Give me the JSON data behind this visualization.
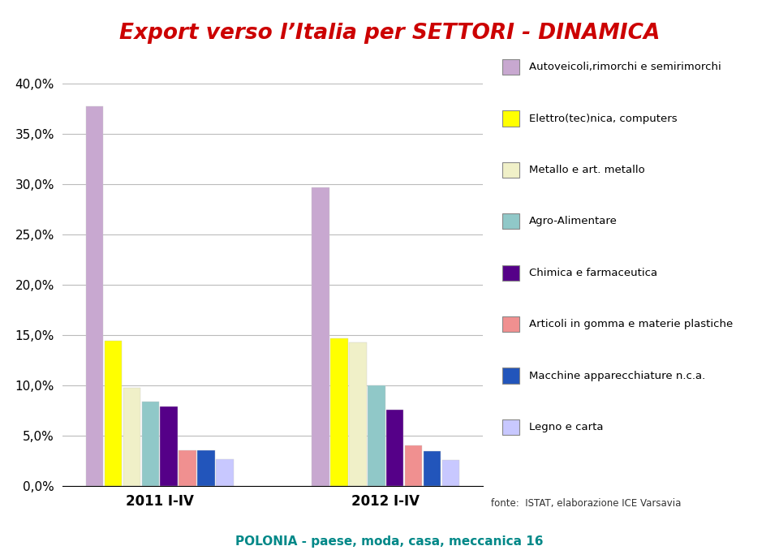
{
  "title": "Export verso l’Italia per SETTORI - DINAMICA",
  "title_color": "#cc0000",
  "categories": [
    "2011 I-IV",
    "2012 I-IV"
  ],
  "series": [
    {
      "label": "Autoveicoli,rimorchi e semirimorchi",
      "color": "#c8a8d0",
      "values": [
        0.378,
        0.297
      ]
    },
    {
      "label": "Elettro(tec)nica, computers",
      "color": "#ffff00",
      "values": [
        0.145,
        0.147
      ]
    },
    {
      "label": "Metallo e art. metallo",
      "color": "#f0f0c8",
      "values": [
        0.098,
        0.143
      ]
    },
    {
      "label": "Agro-Alimentare",
      "color": "#90c8c8",
      "values": [
        0.084,
        0.1
      ]
    },
    {
      "label": "Chimica e farmaceutica",
      "color": "#550088",
      "values": [
        0.079,
        0.076
      ]
    },
    {
      "label": "Articoli in gomma e materie plastiche",
      "color": "#f09090",
      "values": [
        0.036,
        0.041
      ]
    },
    {
      "label": "Macchine apparecchiature n.c.a.",
      "color": "#2255bb",
      "values": [
        0.036,
        0.035
      ]
    },
    {
      "label": "Legno e carta",
      "color": "#c8c8ff",
      "values": [
        0.027,
        0.026
      ]
    }
  ],
  "ylim": [
    0.0,
    0.4
  ],
  "yticks": [
    0.0,
    0.05,
    0.1,
    0.15,
    0.2,
    0.25,
    0.3,
    0.35,
    0.4
  ],
  "ytick_labels": [
    "0,0%",
    "5,0%",
    "10,0%",
    "15,0%",
    "20,0%",
    "25,0%",
    "30,0%",
    "35,0%",
    "40,0%"
  ],
  "background_color": "#ffffff",
  "grid_color": "#bbbbbb",
  "footnote": "fonte:  ISTAT, elaborazione ICE Varsavia",
  "bottom_text": "POLONIA - paese, moda, casa, meccanica 16",
  "bottom_text_color": "#008888"
}
